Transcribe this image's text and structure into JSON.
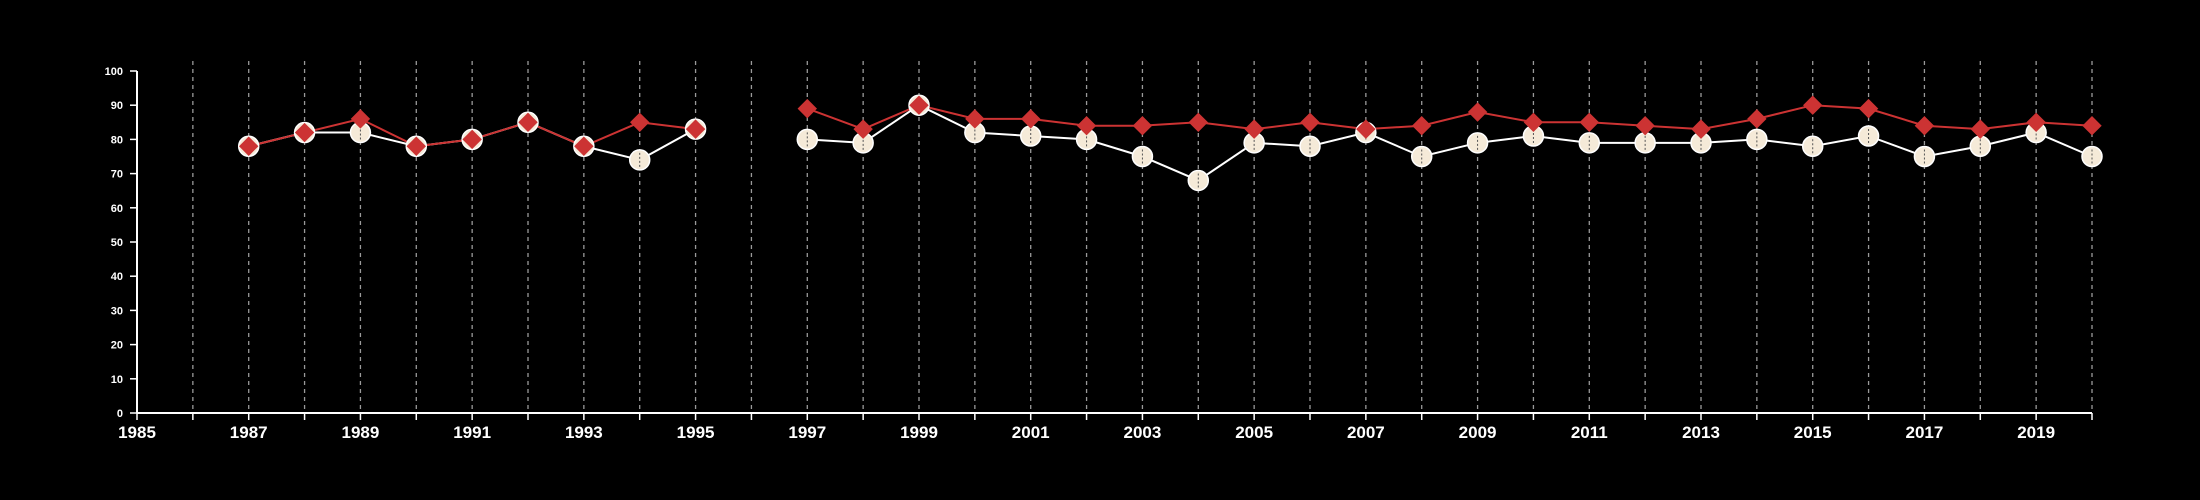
{
  "chart_data": {
    "type": "line",
    "title": "",
    "xlabel": "",
    "ylabel": "",
    "xlim": [
      1985,
      2020
    ],
    "ylim": [
      0,
      100
    ],
    "x_ticks": [
      "1985",
      "1987",
      "1989",
      "1991",
      "1993",
      "1995",
      "1997",
      "1999",
      "2001",
      "2003",
      "2005",
      "2007",
      "2009",
      "2011",
      "2013",
      "2015",
      "2017",
      "2019"
    ],
    "y_ticks": [
      "0",
      "10",
      "20",
      "30",
      "40",
      "50",
      "60",
      "70",
      "80",
      "90",
      "100"
    ],
    "grid": "vertical dashed lines at each year",
    "legend": "none",
    "background": "#000000",
    "series": [
      {
        "color": "#f5ead8",
        "marker": "circle",
        "line_color": "#ffffff",
        "x": [
          1987,
          1988,
          1989,
          1990,
          1991,
          1992,
          1993,
          1994,
          1995,
          1996,
          1997,
          1998,
          1999,
          2000,
          2001,
          2002,
          2003,
          2004,
          2005,
          2006,
          2007,
          2008,
          2009,
          2010,
          2011,
          2012,
          2013,
          2014,
          2015,
          2016,
          2017,
          2018,
          2019,
          2020
        ],
        "values": [
          78,
          82,
          82,
          78,
          80,
          85,
          78,
          74,
          83,
          null,
          80,
          79,
          90,
          82,
          81,
          80,
          75,
          68,
          79,
          78,
          82,
          75,
          79,
          81,
          79,
          79,
          79,
          80,
          78,
          81,
          75,
          78,
          82,
          75
        ]
      },
      {
        "color": "#cc3333",
        "marker": "diamond",
        "line_color": "#cc3333",
        "x": [
          1987,
          1988,
          1989,
          1990,
          1991,
          1992,
          1993,
          1994,
          1995,
          1996,
          1997,
          1998,
          1999,
          2000,
          2001,
          2002,
          2003,
          2004,
          2005,
          2006,
          2007,
          2008,
          2009,
          2010,
          2011,
          2012,
          2013,
          2014,
          2015,
          2016,
          2017,
          2018,
          2019,
          2020
        ],
        "values": [
          78,
          82,
          86,
          78,
          80,
          85,
          78,
          85,
          83,
          null,
          89,
          83,
          90,
          86,
          86,
          84,
          84,
          85,
          83,
          85,
          83,
          84,
          88,
          85,
          85,
          84,
          83,
          86,
          90,
          89,
          84,
          83,
          85,
          84
        ]
      }
    ]
  }
}
